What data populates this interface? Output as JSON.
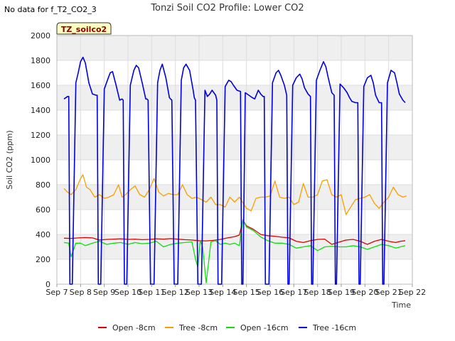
{
  "no_data_note": "No data for f_T2_CO2_3",
  "badge": "TZ_soilco2",
  "colors": {
    "open8": "#dd0000",
    "tree8": "#f5a000",
    "open16": "#11dd11",
    "tree16": "#0000dd",
    "band": "#efefef",
    "badge_fill": "#ffffc0"
  },
  "chart_data": {
    "type": "line",
    "title": "Tonzi Soil CO2 Profile: Lower CO2",
    "xlabel": "Time",
    "ylabel": "Soil CO2 (ppm)",
    "xlim": [
      7,
      22
    ],
    "ylim": [
      0,
      2000
    ],
    "x_ticks": [
      {
        "value": 7,
        "label": "Sep 7"
      },
      {
        "value": 8,
        "label": "Sep 8"
      },
      {
        "value": 9,
        "label": "Sep 9"
      },
      {
        "value": 10,
        "label": "Sep 10"
      },
      {
        "value": 11,
        "label": "Sep 11"
      },
      {
        "value": 12,
        "label": "Sep 12"
      },
      {
        "value": 13,
        "label": "Sep 13"
      },
      {
        "value": 14,
        "label": "Sep 14"
      },
      {
        "value": 15,
        "label": "Sep 15"
      },
      {
        "value": 16,
        "label": "Sep 16"
      },
      {
        "value": 17,
        "label": "Sep 17"
      },
      {
        "value": 18,
        "label": "Sep 18"
      },
      {
        "value": 19,
        "label": "Sep 19"
      },
      {
        "value": 20,
        "label": "Sep 20"
      },
      {
        "value": 21,
        "label": "Sep 21"
      },
      {
        "value": 22,
        "label": "Sep 22"
      }
    ],
    "y_ticks": [
      0,
      200,
      400,
      600,
      800,
      1000,
      1200,
      1400,
      1600,
      1800,
      2000
    ],
    "grid": true,
    "legend_position": "bottom",
    "series": [
      {
        "name": "Open -8cm",
        "color_key": "open8",
        "x": [
          7.3,
          7.6,
          7.9,
          8.2,
          8.5,
          8.8,
          9.1,
          9.4,
          9.7,
          10.0,
          10.3,
          10.6,
          10.9,
          11.2,
          11.5,
          11.8,
          12.1,
          12.4,
          12.7,
          13.0,
          13.3,
          13.6,
          13.9,
          14.2,
          14.5,
          14.7,
          14.85,
          15.0,
          15.3,
          15.6,
          15.9,
          16.2,
          16.5,
          16.8,
          17.1,
          17.4,
          17.7,
          18.0,
          18.3,
          18.6,
          18.9,
          19.2,
          19.5,
          19.8,
          20.1,
          20.4,
          20.7,
          21.0,
          21.3,
          21.5,
          21.7
        ],
        "y": [
          370,
          368,
          372,
          375,
          372,
          355,
          360,
          362,
          365,
          360,
          362,
          358,
          360,
          365,
          362,
          366,
          362,
          358,
          355,
          350,
          348,
          352,
          360,
          372,
          382,
          395,
          515,
          470,
          440,
          400,
          390,
          385,
          378,
          372,
          345,
          335,
          350,
          360,
          362,
          320,
          338,
          355,
          360,
          345,
          320,
          345,
          360,
          345,
          335,
          345,
          350
        ]
      },
      {
        "name": "Tree -8cm",
        "color_key": "tree8",
        "x": [
          7.3,
          7.45,
          7.6,
          7.8,
          8.0,
          8.1,
          8.25,
          8.4,
          8.6,
          8.8,
          9.0,
          9.2,
          9.4,
          9.6,
          9.75,
          9.9,
          10.1,
          10.3,
          10.5,
          10.7,
          10.9,
          11.1,
          11.3,
          11.5,
          11.7,
          11.9,
          12.1,
          12.3,
          12.5,
          12.7,
          12.9,
          13.1,
          13.3,
          13.5,
          13.7,
          13.9,
          14.1,
          14.3,
          14.5,
          14.7,
          14.9,
          15.0,
          15.2,
          15.4,
          15.6,
          15.8,
          16.0,
          16.2,
          16.4,
          16.6,
          16.8,
          17.0,
          17.2,
          17.4,
          17.6,
          17.8,
          18.0,
          18.2,
          18.4,
          18.6,
          18.8,
          19.0,
          19.2,
          19.4,
          19.6,
          19.8,
          20.0,
          20.2,
          20.4,
          20.6,
          20.8,
          21.0,
          21.2,
          21.4,
          21.6,
          21.75
        ],
        "y": [
          770,
          740,
          720,
          760,
          850,
          880,
          780,
          760,
          700,
          720,
          690,
          700,
          720,
          800,
          700,
          720,
          760,
          790,
          720,
          700,
          760,
          850,
          740,
          710,
          730,
          720,
          720,
          800,
          720,
          690,
          700,
          680,
          660,
          700,
          640,
          640,
          620,
          700,
          660,
          700,
          640,
          610,
          590,
          690,
          700,
          700,
          710,
          830,
          700,
          690,
          700,
          640,
          660,
          810,
          700,
          700,
          720,
          830,
          840,
          720,
          700,
          720,
          560,
          620,
          680,
          690,
          700,
          720,
          650,
          610,
          660,
          700,
          780,
          720,
          700,
          710
        ]
      },
      {
        "name": "Open -16cm",
        "color_key": "open16",
        "x": [
          7.3,
          7.5,
          7.6,
          7.8,
          8.0,
          8.2,
          8.5,
          8.8,
          9.1,
          9.4,
          9.7,
          10.0,
          10.3,
          10.6,
          10.9,
          11.2,
          11.5,
          11.8,
          12.1,
          12.4,
          12.7,
          12.85,
          12.95,
          13.05,
          13.15,
          13.3,
          13.5,
          13.7,
          13.9,
          14.1,
          14.3,
          14.5,
          14.7,
          14.85,
          15.0,
          15.3,
          15.6,
          15.9,
          16.2,
          16.5,
          16.8,
          17.1,
          17.4,
          17.7,
          18.0,
          18.3,
          18.6,
          18.9,
          19.2,
          19.5,
          19.8,
          20.1,
          20.4,
          20.7,
          21.0,
          21.3,
          21.5,
          21.7
        ],
        "y": [
          335,
          330,
          220,
          330,
          330,
          310,
          330,
          345,
          320,
          330,
          335,
          320,
          335,
          325,
          330,
          345,
          300,
          320,
          330,
          335,
          340,
          200,
          140,
          350,
          300,
          10,
          340,
          350,
          320,
          330,
          320,
          330,
          310,
          520,
          460,
          430,
          380,
          350,
          330,
          330,
          320,
          290,
          300,
          310,
          270,
          300,
          305,
          300,
          300,
          310,
          300,
          280,
          300,
          320,
          310,
          290,
          300,
          310
        ]
      },
      {
        "name": "Tree -16cm",
        "color_key": "tree16",
        "x": [
          7.3,
          7.45,
          7.5,
          7.55,
          7.65,
          7.8,
          7.9,
          8.0,
          8.1,
          8.2,
          8.35,
          8.5,
          8.65,
          8.7,
          8.75,
          8.85,
          9.0,
          9.15,
          9.25,
          9.35,
          9.5,
          9.65,
          9.75,
          9.8,
          9.85,
          9.95,
          10.1,
          10.25,
          10.35,
          10.45,
          10.6,
          10.75,
          10.8,
          10.85,
          10.95,
          11.1,
          11.25,
          11.35,
          11.45,
          11.6,
          11.75,
          11.8,
          11.85,
          11.95,
          12.1,
          12.25,
          12.35,
          12.45,
          12.6,
          12.75,
          12.8,
          12.85,
          12.95,
          13.1,
          13.25,
          13.35,
          13.45,
          13.55,
          13.7,
          13.75,
          13.8,
          13.95,
          14.1,
          14.25,
          14.35,
          14.45,
          14.6,
          14.75,
          14.8,
          14.85,
          14.95,
          15.1,
          15.25,
          15.35,
          15.5,
          15.6,
          15.7,
          15.75,
          15.8,
          15.95,
          16.1,
          16.25,
          16.35,
          16.45,
          16.6,
          16.7,
          16.75,
          16.8,
          16.95,
          17.1,
          17.25,
          17.35,
          17.45,
          17.6,
          17.7,
          17.75,
          17.8,
          17.95,
          18.1,
          18.25,
          18.35,
          18.45,
          18.6,
          18.7,
          18.75,
          18.8,
          18.95,
          19.1,
          19.25,
          19.35,
          19.45,
          19.6,
          19.7,
          19.75,
          19.8,
          19.95,
          20.1,
          20.25,
          20.35,
          20.45,
          20.6,
          20.7,
          20.75,
          20.8,
          20.95,
          21.1,
          21.25,
          21.35,
          21.45,
          21.6,
          21.7
        ],
        "y": [
          1490,
          1510,
          1510,
          0,
          0,
          1620,
          1700,
          1790,
          1825,
          1780,
          1620,
          1530,
          1520,
          1520,
          0,
          0,
          1570,
          1650,
          1700,
          1710,
          1600,
          1480,
          1490,
          1480,
          0,
          0,
          1600,
          1720,
          1760,
          1740,
          1620,
          1490,
          1490,
          1480,
          0,
          0,
          1620,
          1720,
          1770,
          1660,
          1500,
          1490,
          1480,
          0,
          0,
          1640,
          1740,
          1770,
          1720,
          1560,
          1500,
          1480,
          0,
          0,
          1560,
          1510,
          1530,
          1560,
          1520,
          1480,
          0,
          0,
          1590,
          1640,
          1630,
          1600,
          1560,
          1550,
          0,
          0,
          1540,
          1520,
          1500,
          1490,
          1560,
          1530,
          1510,
          1510,
          0,
          0,
          1620,
          1700,
          1720,
          1680,
          1600,
          1520,
          0,
          0,
          1600,
          1660,
          1690,
          1650,
          1580,
          1530,
          1510,
          0,
          0,
          1640,
          1720,
          1790,
          1750,
          1660,
          1540,
          1520,
          0,
          0,
          1610,
          1580,
          1540,
          1500,
          1470,
          1460,
          1460,
          0,
          0,
          1590,
          1660,
          1680,
          1620,
          1520,
          1460,
          1460,
          0,
          0,
          1620,
          1720,
          1700,
          1620,
          1530,
          1480,
          1460
        ]
      }
    ]
  }
}
